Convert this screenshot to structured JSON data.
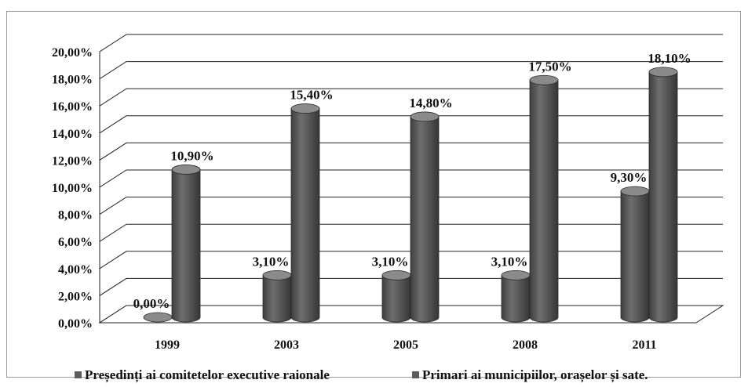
{
  "chart_data": {
    "type": "bar",
    "style": "3d-cylinder",
    "categories": [
      "1999",
      "2003",
      "2005",
      "2008",
      "2011"
    ],
    "series": [
      {
        "name": "Președinți ai comitetelor executive raionale",
        "values": [
          0.0,
          3.1,
          3.1,
          3.1,
          9.3
        ],
        "labels": [
          "0,00%",
          "3,10%",
          "3,10%",
          "3,10%",
          "9,30%"
        ]
      },
      {
        "name": "Primari ai municipiilor, orașelor și sate.",
        "values": [
          10.9,
          15.4,
          14.8,
          17.5,
          18.1
        ],
        "labels": [
          "10,90%",
          "15,40%",
          "14,80%",
          "17,50%",
          "18,10%"
        ]
      }
    ],
    "y_ticks": [
      "0,00%",
      "2,00%",
      "4,00%",
      "6,00%",
      "8,00%",
      "10,00%",
      "12,00%",
      "14,00%",
      "16,00%",
      "18,00%",
      "20,00%"
    ],
    "ylim": [
      0,
      20
    ],
    "grid": true,
    "legend_position": "bottom",
    "colors": {
      "bar": "#5c5c5c",
      "bar_dark": "#3a3a3a",
      "bar_light": "#8a8a8a",
      "grid": "#222222"
    }
  }
}
